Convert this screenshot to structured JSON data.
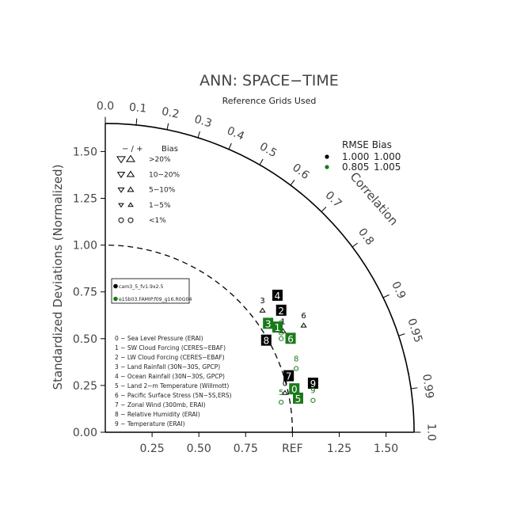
{
  "chart_data": {
    "type": "scatter",
    "diagram": "taylor",
    "title": "ANN: SPACE−TIME",
    "subtitle": "Reference Grids Used",
    "ylabel": "Standardized Deviations (Normalized)",
    "corr_label": "Correlation",
    "ref_label": "REF",
    "ylim": [
      0,
      1.65
    ],
    "xlim": [
      0,
      1.65
    ],
    "y_ticks": [
      "0.00",
      "0.25",
      "0.50",
      "0.75",
      "1.00",
      "1.25",
      "1.50"
    ],
    "x_ticks": [
      "0.25",
      "0.50",
      "0.75",
      "1.25",
      "1.50"
    ],
    "corr_ticks": [
      "0.0",
      "0.1",
      "0.2",
      "0.3",
      "0.4",
      "0.5",
      "0.6",
      "0.7",
      "0.8",
      "0.9",
      "0.95",
      "0.99",
      "1.0"
    ],
    "grid": false,
    "bias_legend": {
      "header_sign": "− / +",
      "header_bias": "Bias",
      "rows": [
        ">20%",
        "10−20%",
        "5−10%",
        "1−5%",
        "<1%"
      ]
    },
    "rmse_legend": {
      "header": "RMSE  Bias",
      "rows": [
        {
          "color": "#000000",
          "rmse": "1.000",
          "bias": "1.000"
        },
        {
          "color": "#1a7a1a",
          "rmse": "0.805",
          "bias": "1.005"
        }
      ]
    },
    "case_legend": [
      {
        "color": "#000000",
        "label": "cam3_5_fv1.9x2.5"
      },
      {
        "color": "#1a7a1a",
        "label": "e15b03.FAMIP.f09_g16.R0G04"
      }
    ],
    "variable_legend": [
      "0 − Sea Level Pressure (ERAI)",
      "1 − SW Cloud Forcing (CERES−EBAF)",
      "2 − LW Cloud Forcing (CERES−EBAF)",
      "3 − Land Rainfall (30N−30S, GPCP)",
      "4 − Ocean Rainfall (30N−30S, GPCP)",
      "5 − Land 2−m Temperature (Willmott)",
      "6 − Pacific Surface Stress (5N−5S,ERS)",
      "7 − Zonal Wind (300mb, ERAI)",
      "8 − Relative Humidity (ERAI)",
      "9 − Temperature (ERAI)"
    ],
    "series": [
      {
        "color": "#000000",
        "points": [
          {
            "label": "4",
            "style": "box",
            "x": 0.92,
            "y": 0.73
          },
          {
            "label": "2",
            "style": "box",
            "x": 0.94,
            "y": 0.65
          },
          {
            "label": "8",
            "style": "box",
            "x": 0.86,
            "y": 0.49
          },
          {
            "label": "7",
            "style": "box",
            "x": 0.98,
            "y": 0.3
          },
          {
            "label": "9",
            "style": "box",
            "x": 1.11,
            "y": 0.26
          },
          {
            "label": "3",
            "style": "text",
            "x": 0.84,
            "y": 0.68
          },
          {
            "label": "6",
            "style": "text",
            "x": 1.06,
            "y": 0.6
          },
          {
            "label": "1",
            "style": "text",
            "x": 0.95,
            "y": 0.57
          },
          {
            "label": "0",
            "style": "text",
            "x": 0.96,
            "y": 0.24
          }
        ]
      },
      {
        "color": "#1a7a1a",
        "points": [
          {
            "label": "3",
            "style": "box",
            "x": 0.87,
            "y": 0.58
          },
          {
            "label": "1",
            "style": "box",
            "x": 0.92,
            "y": 0.56
          },
          {
            "label": "6",
            "style": "box",
            "x": 0.99,
            "y": 0.5
          },
          {
            "label": "0",
            "style": "box",
            "x": 1.01,
            "y": 0.23
          },
          {
            "label": "5",
            "style": "box",
            "x": 1.03,
            "y": 0.18
          },
          {
            "label": "2",
            "style": "text",
            "x": 0.94,
            "y": 0.56
          },
          {
            "label": "4",
            "style": "text",
            "x": 0.94,
            "y": 0.53
          },
          {
            "label": "8",
            "style": "text",
            "x": 1.02,
            "y": 0.37
          },
          {
            "label": "9",
            "style": "text",
            "x": 1.11,
            "y": 0.2
          },
          {
            "label": "5",
            "style": "text",
            "x": 0.94,
            "y": 0.19
          }
        ]
      }
    ]
  }
}
